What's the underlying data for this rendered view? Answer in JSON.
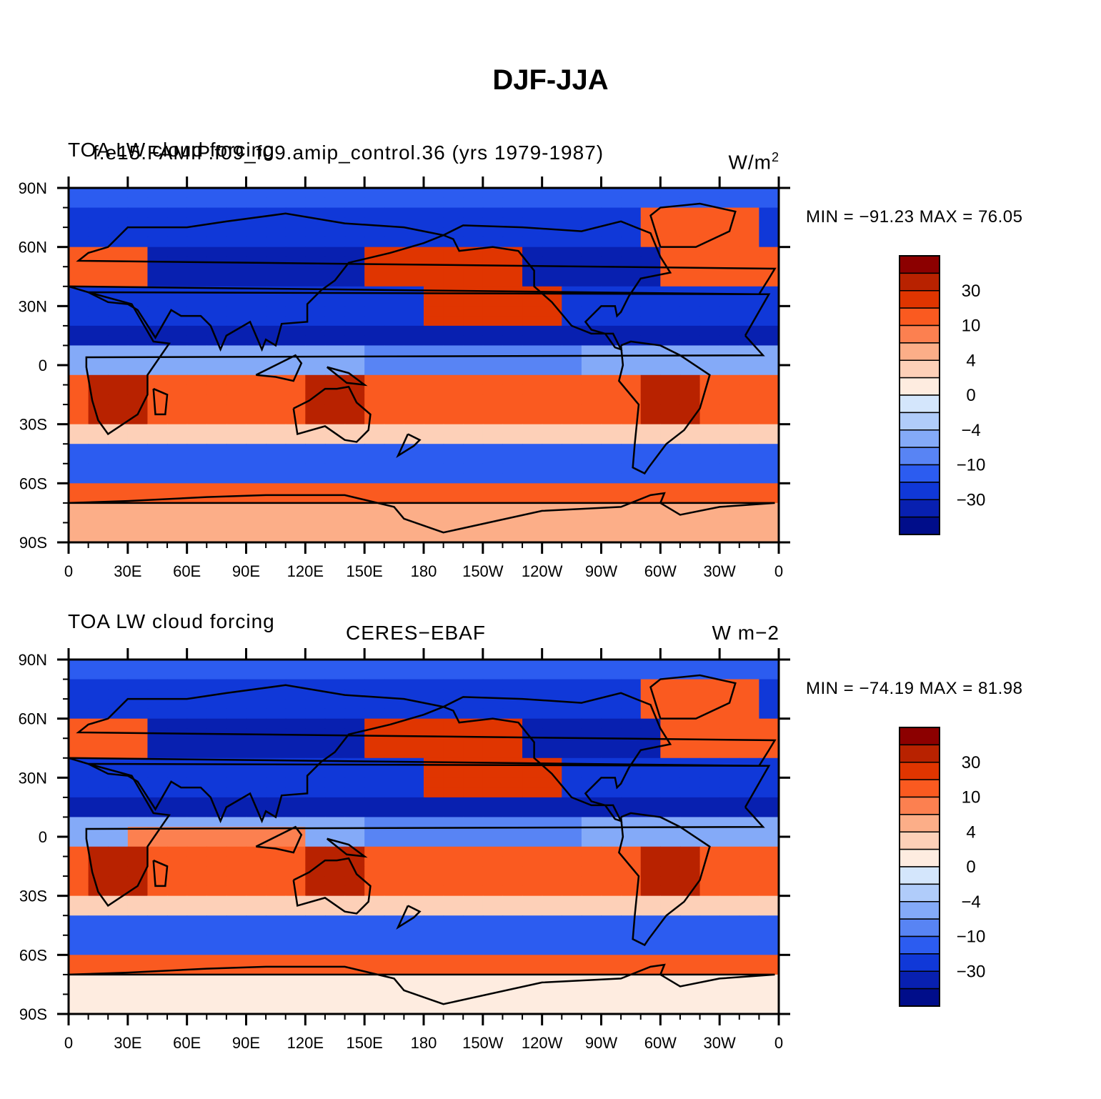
{
  "title": "DJF-JJA",
  "panels": [
    {
      "left_label": "TOA LW cloud forcing",
      "center_label": "f.e15.FAMIP.f09_f09.amip_control.36 (yrs 1979-1987)",
      "right_label": "W/m",
      "right_label_sup": "2",
      "min_max": "MIN = −91.23 MAX =  76.05"
    },
    {
      "left_label": "TOA LW cloud forcing",
      "center_label": "CERES−EBAF",
      "right_label": "W m−2",
      "right_label_sup": "",
      "min_max": "MIN = −74.19 MAX =  81.98"
    }
  ],
  "lat_ticks": [
    "90N",
    "60N",
    "30N",
    "0",
    "30S",
    "60S",
    "90S"
  ],
  "lon_ticks": [
    "0",
    "30E",
    "60E",
    "90E",
    "120E",
    "150E",
    "180",
    "150W",
    "120W",
    "90W",
    "60W",
    "30W",
    "0"
  ],
  "colorbar": {
    "labels": [
      "30",
      "10",
      "4",
      "0",
      "−4",
      "−10",
      "−30"
    ],
    "colors": [
      "#8c0000",
      "#b82200",
      "#e03500",
      "#fa5a20",
      "#fc8050",
      "#fcae88",
      "#fdd0b8",
      "#feece0",
      "#d4e6fc",
      "#b0ccfa",
      "#84aaf8",
      "#5884f4",
      "#2c5cf0",
      "#1038d8",
      "#0820b0",
      "#000d8a"
    ]
  },
  "chart_data": {
    "type": "heatmap",
    "description_source": "global lat-lon filled contour maps, seasonal difference",
    "x_range": [
      0,
      360
    ],
    "y_range": [
      -90,
      90
    ],
    "levels": [
      -40,
      -30,
      -20,
      -10,
      -7,
      -4,
      -2,
      0,
      2,
      4,
      7,
      10,
      20,
      30,
      40
    ],
    "maps": [
      {
        "min": -91.23,
        "max": 76.05
      },
      {
        "min": -74.19,
        "max": 81.98
      }
    ]
  }
}
